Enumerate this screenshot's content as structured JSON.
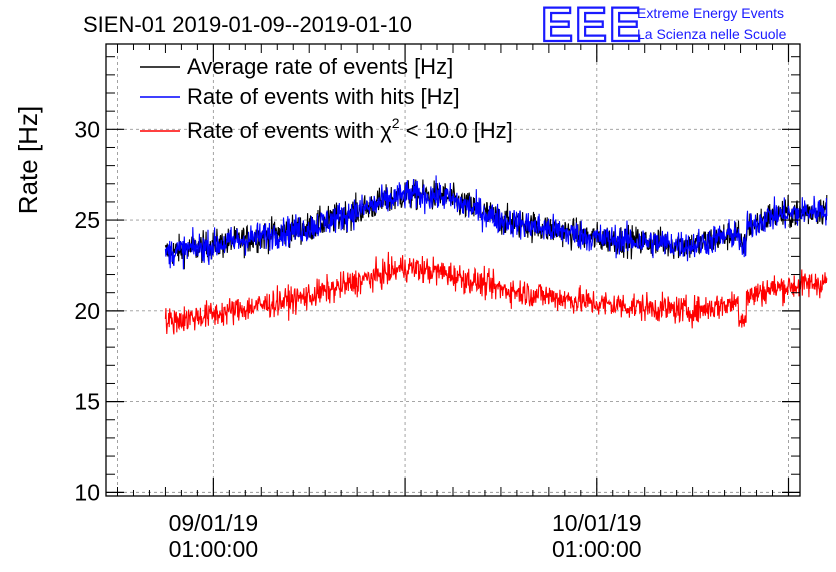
{
  "chart_data": {
    "type": "line",
    "title": "SIEN-01 2019-01-09--2019-01-10",
    "ylabel": "Rate [Hz]",
    "xlabel": "",
    "ylim": [
      9.8,
      34.7
    ],
    "xlim": [
      -0.28,
      1.53
    ],
    "grid": true,
    "legend_position": "top-left",
    "x_ticks": [
      {
        "x": 0,
        "label_line1": "09/01/19",
        "label_line2": "01:00:00"
      },
      {
        "x": 1,
        "label_line1": "10/01/19",
        "label_line2": "01:00:00"
      }
    ],
    "y_ticks": [
      10,
      15,
      20,
      25,
      30
    ],
    "series": [
      {
        "name": "Average rate of events [Hz]",
        "color": "#000000",
        "x": [
          -0.125,
          0.0,
          0.25,
          0.5,
          0.6,
          0.75,
          1.0,
          1.25,
          1.35,
          1.45,
          1.6
        ],
        "values": [
          23.2,
          23.6,
          24.6,
          26.4,
          26.3,
          25.0,
          24.0,
          23.6,
          24.2,
          25.2,
          25.6
        ]
      },
      {
        "name": "Rate of events with hits [Hz]",
        "color": "#0000ff",
        "x": [
          -0.125,
          0.0,
          0.25,
          0.5,
          0.6,
          0.75,
          1.0,
          1.25,
          1.35,
          1.45,
          1.6
        ],
        "values": [
          23.2,
          23.6,
          24.6,
          26.4,
          26.3,
          25.0,
          24.0,
          23.6,
          24.2,
          25.2,
          25.6
        ]
      },
      {
        "name": "Rate of events with χ² < 10.0 [Hz]",
        "color": "#ff0000",
        "x": [
          -0.125,
          0.0,
          0.25,
          0.5,
          0.6,
          0.75,
          1.0,
          1.25,
          1.35,
          1.45,
          1.6
        ],
        "values": [
          19.4,
          19.8,
          20.8,
          22.4,
          22.1,
          21.2,
          20.4,
          20.0,
          20.4,
          21.2,
          21.6
        ]
      }
    ],
    "legend": [
      {
        "prefix": "Average rate of events [Hz]",
        "chi_symbol": "",
        "superscript": "",
        "suffix": "",
        "color": "#000000"
      },
      {
        "prefix": "Rate of events with hits [Hz]",
        "chi_symbol": "",
        "superscript": "",
        "suffix": "",
        "color": "#0000ff"
      },
      {
        "prefix": "Rate of events with ",
        "chi_symbol": "χ",
        "superscript": "2",
        "suffix": " < 10.0 [Hz]",
        "color": "#ff0000"
      }
    ]
  },
  "logo": {
    "mark": "EEE",
    "line1": "Extreme Energy Events",
    "line2": "La Scienza nelle Scuole",
    "color": "#1a1aff"
  }
}
